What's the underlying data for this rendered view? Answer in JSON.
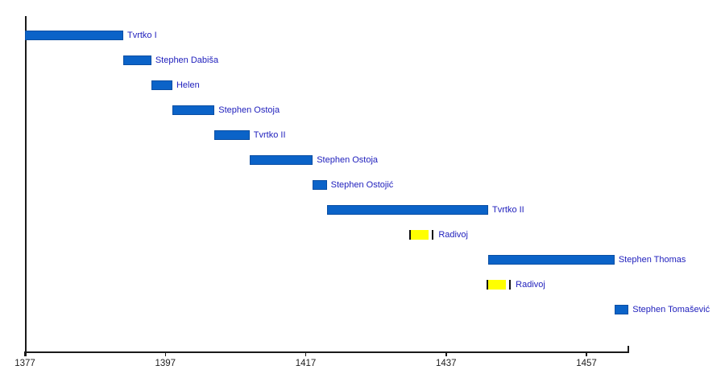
{
  "chart_data": {
    "type": "bar",
    "variant": "horizontal-timeline-gantt",
    "title": "",
    "x_axis": {
      "range": [
        1377,
        1463
      ],
      "ticks": [
        "1377",
        "1397",
        "1417",
        "1437",
        "1457"
      ],
      "tick_years": [
        1377,
        1397,
        1417,
        1437,
        1457
      ],
      "grid": false
    },
    "legend": "none",
    "bars": [
      {
        "label": "Tvrtko I",
        "start": 1377,
        "end": 1391,
        "color": "blue"
      },
      {
        "label": "Stephen Dabiša",
        "start": 1391,
        "end": 1395,
        "color": "blue"
      },
      {
        "label": "Helen",
        "start": 1395,
        "end": 1398,
        "color": "blue"
      },
      {
        "label": "Stephen Ostoja",
        "start": 1398,
        "end": 1404,
        "color": "blue"
      },
      {
        "label": "Tvrtko II",
        "start": 1404,
        "end": 1409,
        "color": "blue"
      },
      {
        "label": "Stephen Ostoja",
        "start": 1409,
        "end": 1418,
        "color": "blue"
      },
      {
        "label": "Stephen Ostojić",
        "start": 1418,
        "end": 1420,
        "color": "blue"
      },
      {
        "label": "Tvrtko II",
        "start": 1420,
        "end": 1443,
        "color": "blue"
      },
      {
        "label": "Radivoj",
        "start": 1432,
        "end": 1435,
        "color": "yellow"
      },
      {
        "label": "Stephen Thomas",
        "start": 1443,
        "end": 1461,
        "color": "blue"
      },
      {
        "label": "Radivoj",
        "start": 1443,
        "end": 1446,
        "color": "yellow"
      },
      {
        "label": "Stephen Tomašević",
        "start": 1461,
        "end": 1463,
        "color": "blue"
      }
    ],
    "colors": {
      "reign_bar": "#0b63c8",
      "reign_bar_border": "#0a4ea3",
      "alternate_bar": "#ffff00",
      "bar_cap": "#111111",
      "label_text": "#2121bd",
      "axis": "#1a1a1a"
    }
  }
}
